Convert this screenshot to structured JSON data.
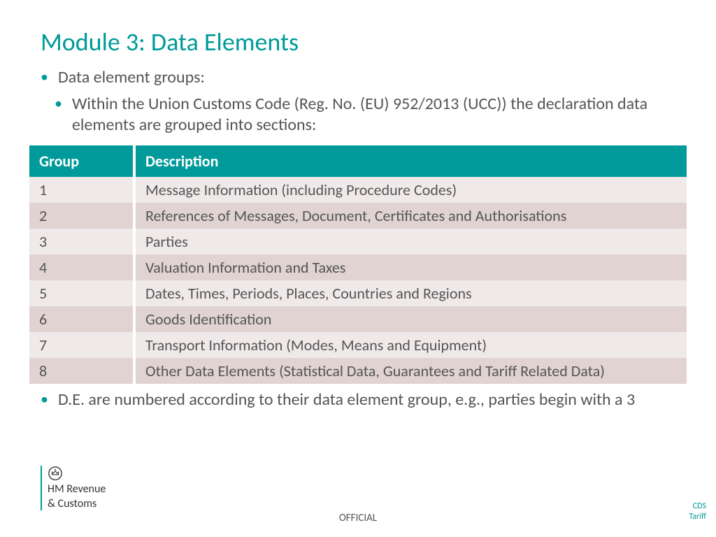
{
  "title": "Module 3: Data Elements",
  "bullets": {
    "b1": "Data element groups:",
    "b2": "Within the Union Customs Code (Reg. No. (EU) 952/2013 (UCC)) the declaration data elements are grouped into sections:",
    "b3": "D.E. are numbered according to their data element group, e.g., parties begin with a 3"
  },
  "table": {
    "columns": [
      "Group",
      "Description"
    ],
    "rows": [
      [
        "1",
        "Message Information (including Procedure Codes)"
      ],
      [
        "2",
        "References of Messages, Document, Certificates and Authorisations"
      ],
      [
        "3",
        "Parties"
      ],
      [
        "4",
        "Valuation Information and Taxes"
      ],
      [
        "5",
        "Dates, Times, Periods, Places, Countries and Regions"
      ],
      [
        "6",
        "Goods Identification"
      ],
      [
        "7",
        "Transport Information (Modes, Means and Equipment)"
      ],
      [
        "8",
        "Other Data Elements (Statistical Data, Guarantees and Tariff Related Data)"
      ]
    ],
    "header_bg": "#009a9a",
    "header_fg": "#ffffff",
    "row_odd_bg": "#efeae9",
    "row_even_bg": "#e0d3d2",
    "text_color": "#555555"
  },
  "logo": {
    "line1": "HM Revenue",
    "line2": "& Customs"
  },
  "footer": {
    "center": "OFFICIAL",
    "right": "CDS Tariff"
  },
  "colors": {
    "accent": "#009a9a",
    "body_text": "#555555"
  }
}
